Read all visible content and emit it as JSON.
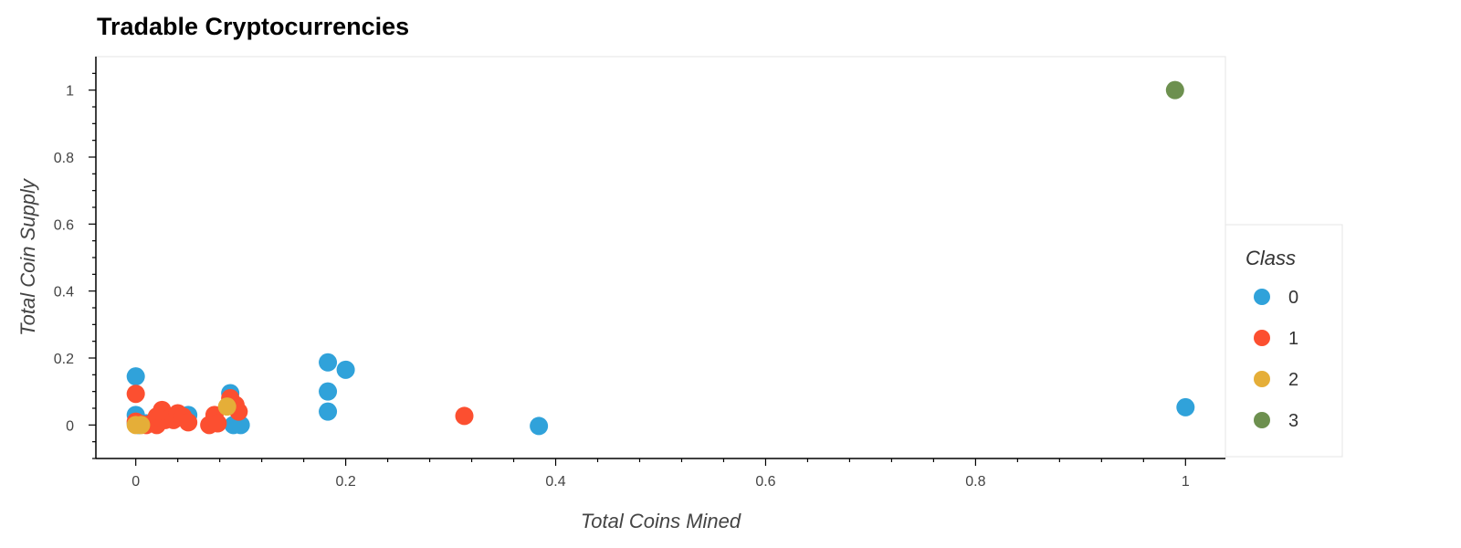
{
  "chart_data": {
    "type": "scatter",
    "title": "Tradable Cryptocurrencies",
    "xlabel": "Total Coins Mined",
    "ylabel": "Total Coin Supply",
    "xlim": [
      -0.038,
      1.038
    ],
    "ylim": [
      -0.1,
      1.1
    ],
    "xticks": [
      0,
      0.2,
      0.4,
      0.6,
      0.8,
      1
    ],
    "yticks": [
      0,
      0.2,
      0.4,
      0.6,
      0.8,
      1
    ],
    "grid": false,
    "legend": {
      "title": "Class",
      "placement": "right"
    },
    "series": [
      {
        "name": "0",
        "color": "#30a2da",
        "points": [
          [
            0.0,
            0.145
          ],
          [
            0.0,
            0.03
          ],
          [
            0.0,
            0.005
          ],
          [
            0.003,
            0.0
          ],
          [
            0.01,
            0.005
          ],
          [
            0.05,
            0.03
          ],
          [
            0.09,
            0.095
          ],
          [
            0.093,
            0.0
          ],
          [
            0.1,
            0.0
          ],
          [
            0.183,
            0.187
          ],
          [
            0.183,
            0.1
          ],
          [
            0.183,
            0.04
          ],
          [
            0.2,
            0.165
          ],
          [
            0.384,
            -0.003
          ],
          [
            1.0,
            0.053
          ]
        ]
      },
      {
        "name": "1",
        "color": "#fc4f30",
        "points": [
          [
            0.0,
            0.093
          ],
          [
            0.0,
            0.01
          ],
          [
            0.005,
            0.003
          ],
          [
            0.01,
            0.0
          ],
          [
            0.015,
            0.005
          ],
          [
            0.02,
            0.0
          ],
          [
            0.02,
            0.025
          ],
          [
            0.025,
            0.045
          ],
          [
            0.028,
            0.015
          ],
          [
            0.033,
            0.02
          ],
          [
            0.036,
            0.015
          ],
          [
            0.04,
            0.035
          ],
          [
            0.045,
            0.025
          ],
          [
            0.05,
            0.008
          ],
          [
            0.07,
            0.0
          ],
          [
            0.075,
            0.03
          ],
          [
            0.078,
            0.005
          ],
          [
            0.09,
            0.08
          ],
          [
            0.095,
            0.06
          ],
          [
            0.098,
            0.04
          ],
          [
            0.313,
            0.027
          ]
        ]
      },
      {
        "name": "2",
        "color": "#e5ae38",
        "points": [
          [
            0.0,
            0.0
          ],
          [
            0.005,
            0.0
          ],
          [
            0.087,
            0.055
          ]
        ]
      },
      {
        "name": "3",
        "color": "#6d904f",
        "points": [
          [
            0.99,
            1.0
          ]
        ]
      }
    ]
  }
}
